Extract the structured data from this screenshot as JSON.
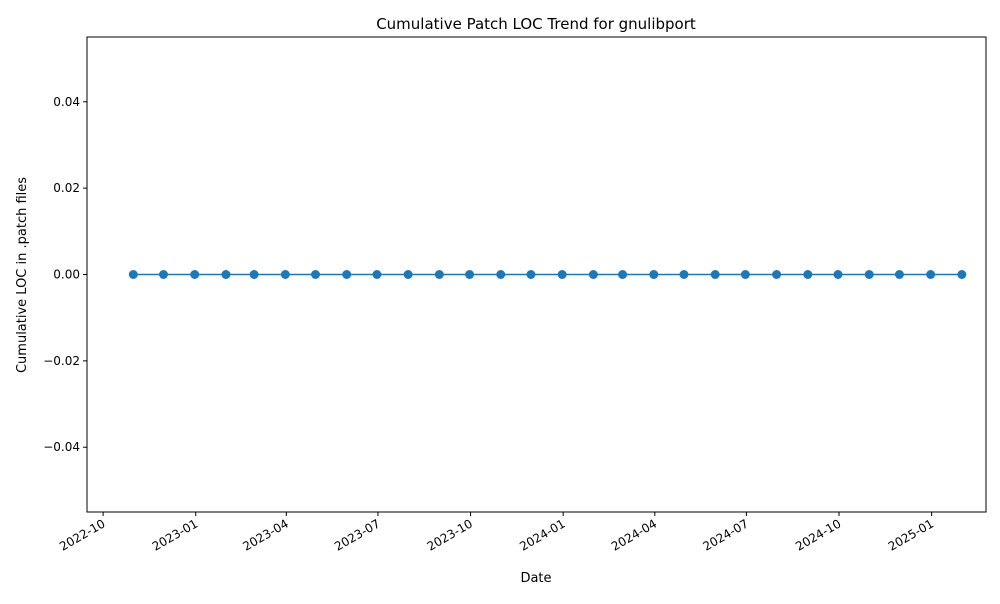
{
  "chart_data": {
    "type": "line",
    "title": "Cumulative Patch LOC Trend for gnulibport",
    "xlabel": "Date",
    "ylabel": "Cumulative LOC in .patch files",
    "x_axis_type": "date",
    "xlim": [
      "2022-09-15",
      "2025-02-24"
    ],
    "ylim": [
      -0.055,
      0.055
    ],
    "x_ticks": [
      "2022-10-01",
      "2023-01-01",
      "2023-04-01",
      "2023-07-01",
      "2023-10-01",
      "2024-01-01",
      "2024-04-01",
      "2024-07-01",
      "2024-10-01",
      "2025-01-01"
    ],
    "x_tick_labels": [
      "2022-10",
      "2023-01",
      "2023-04",
      "2023-07",
      "2023-10",
      "2024-01",
      "2024-04",
      "2024-07",
      "2024-10",
      "2025-01"
    ],
    "y_ticks": [
      -0.04,
      -0.02,
      0.0,
      0.02,
      0.04
    ],
    "y_tick_labels": [
      "−0.04",
      "−0.02",
      "0.00",
      "0.02",
      "0.04"
    ],
    "grid": false,
    "legend": "none",
    "marker": "circle",
    "series_color": "#1f77b4",
    "series": [
      {
        "x": [
          "2022-10-31",
          "2022-11-30",
          "2022-12-31",
          "2023-01-31",
          "2023-02-28",
          "2023-03-31",
          "2023-04-30",
          "2023-05-31",
          "2023-06-30",
          "2023-07-31",
          "2023-08-31",
          "2023-09-30",
          "2023-10-31",
          "2023-11-30",
          "2023-12-31",
          "2024-01-31",
          "2024-02-29",
          "2024-03-31",
          "2024-04-30",
          "2024-05-31",
          "2024-06-30",
          "2024-07-31",
          "2024-08-31",
          "2024-09-30",
          "2024-10-31",
          "2024-11-30",
          "2024-12-31",
          "2025-01-31"
        ],
        "values": [
          0,
          0,
          0,
          0,
          0,
          0,
          0,
          0,
          0,
          0,
          0,
          0,
          0,
          0,
          0,
          0,
          0,
          0,
          0,
          0,
          0,
          0,
          0,
          0,
          0,
          0,
          0,
          0
        ]
      }
    ]
  }
}
